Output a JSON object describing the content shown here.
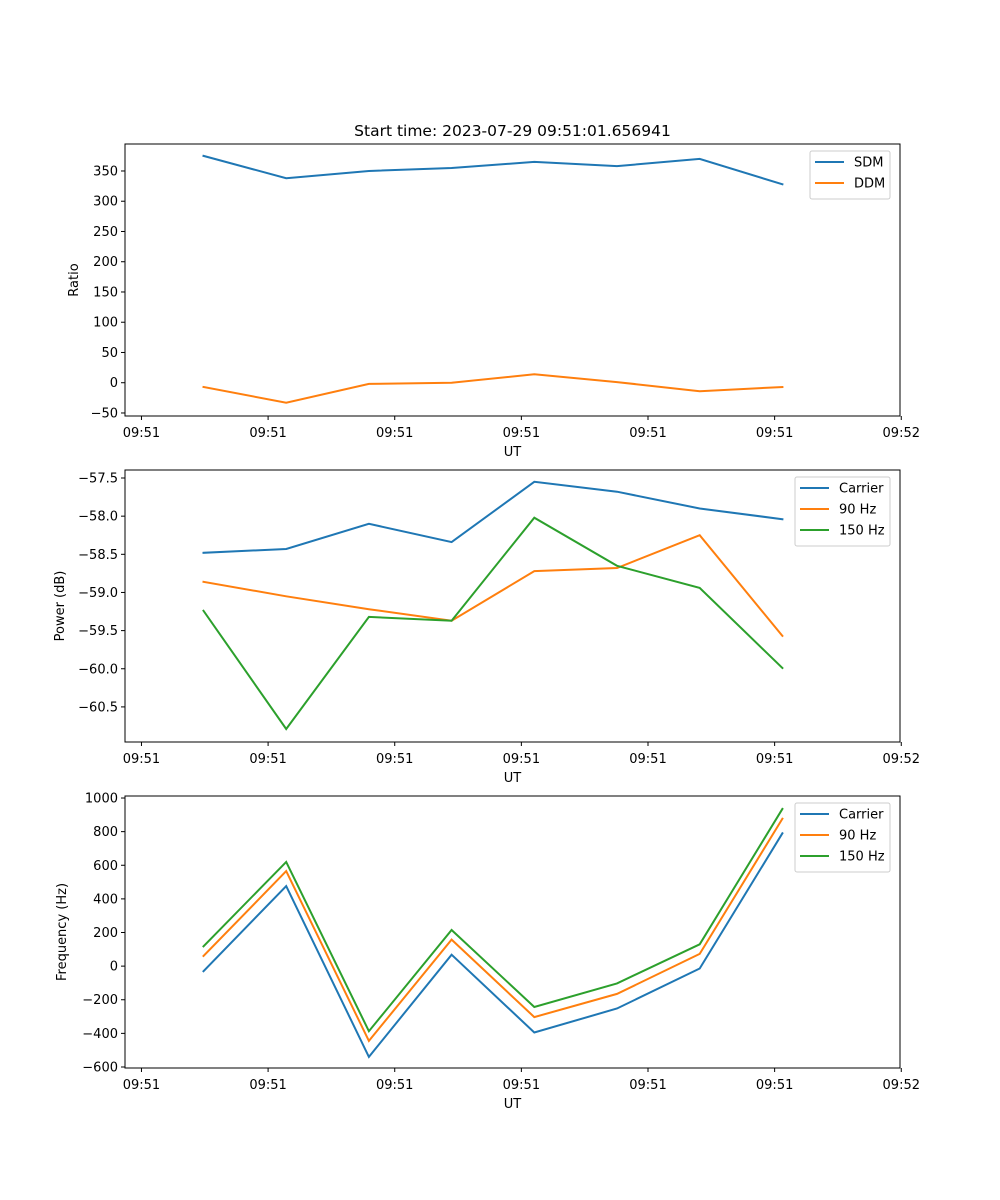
{
  "chart_data": [
    {
      "type": "line",
      "title": "Start time: 2023-07-29 09:51:01.656941",
      "xlabel": "UT",
      "ylabel": "Ratio",
      "x": [
        0.49,
        1.143,
        1.796,
        2.449,
        3.102,
        3.755,
        4.408,
        5.061
      ],
      "xlim": [
        -0.13,
        5.99
      ],
      "xticks": [
        0,
        1,
        2,
        3,
        4,
        5,
        6
      ],
      "xtick_labels": [
        "09:51",
        "09:51",
        "09:51",
        "09:51",
        "09:51",
        "09:51",
        "09:52"
      ],
      "ylim": [
        -55,
        394.6
      ],
      "yticks": [
        -50,
        0,
        50,
        100,
        150,
        200,
        250,
        300,
        350
      ],
      "ytick_labels": [
        "−50",
        "0",
        "50",
        "100",
        "150",
        "200",
        "250",
        "300",
        "350"
      ],
      "legend": "top-right",
      "grid": false,
      "series": [
        {
          "name": "SDM",
          "color": "#1f77b4",
          "values": [
            375,
            338,
            350,
            355,
            365,
            358,
            370,
            328
          ]
        },
        {
          "name": "DDM",
          "color": "#ff7f0e",
          "values": [
            -7,
            -33,
            -2,
            0,
            14,
            1,
            -14,
            -7
          ]
        }
      ]
    },
    {
      "type": "line",
      "title": "",
      "xlabel": "UT",
      "ylabel": "Power (dB)",
      "x": [
        0.49,
        1.143,
        1.796,
        2.449,
        3.102,
        3.755,
        4.408,
        5.061
      ],
      "xlim": [
        -0.13,
        5.99
      ],
      "xticks": [
        0,
        1,
        2,
        3,
        4,
        5,
        6
      ],
      "xtick_labels": [
        "09:51",
        "09:51",
        "09:51",
        "09:51",
        "09:51",
        "09:51",
        "09:52"
      ],
      "ylim": [
        -60.96,
        -57.395
      ],
      "yticks": [
        -60.5,
        -60.0,
        -59.5,
        -59.0,
        -58.5,
        -58.0,
        -57.5
      ],
      "ytick_labels": [
        "−60.5",
        "−60.0",
        "−59.5",
        "−59.0",
        "−58.5",
        "−58.0",
        "−57.5"
      ],
      "legend": "top-right",
      "grid": false,
      "series": [
        {
          "name": "Carrier",
          "color": "#1f77b4",
          "values": [
            -58.48,
            -58.43,
            -58.1,
            -58.34,
            -57.55,
            -57.68,
            -57.9,
            -58.04
          ]
        },
        {
          "name": "90 Hz",
          "color": "#ff7f0e",
          "values": [
            -58.86,
            -59.05,
            -59.22,
            -59.37,
            -58.72,
            -58.68,
            -58.25,
            -59.57
          ]
        },
        {
          "name": "150 Hz",
          "color": "#2ca02c",
          "values": [
            -59.24,
            -60.79,
            -59.32,
            -59.37,
            -58.02,
            -58.65,
            -58.94,
            -59.99
          ]
        }
      ]
    },
    {
      "type": "line",
      "title": "",
      "xlabel": "UT",
      "ylabel": "Frequency (Hz)",
      "x": [
        0.49,
        1.143,
        1.796,
        2.449,
        3.102,
        3.755,
        4.408,
        5.061
      ],
      "xlim": [
        -0.13,
        5.99
      ],
      "xticks": [
        0,
        1,
        2,
        3,
        4,
        5,
        6
      ],
      "xtick_labels": [
        "09:51",
        "09:51",
        "09:51",
        "09:51",
        "09:51",
        "09:51",
        "09:52"
      ],
      "ylim": [
        -606,
        1012
      ],
      "yticks": [
        -600,
        -400,
        -200,
        0,
        200,
        400,
        600,
        800,
        1000
      ],
      "ytick_labels": [
        "−600",
        "−400",
        "−200",
        "0",
        "200",
        "400",
        "600",
        "800",
        "1000"
      ],
      "legend": "top-right",
      "grid": false,
      "series": [
        {
          "name": "Carrier",
          "color": "#1f77b4",
          "values": [
            -30,
            476,
            -540,
            68,
            -395,
            -252,
            -14,
            790
          ]
        },
        {
          "name": "90 Hz",
          "color": "#ff7f0e",
          "values": [
            60,
            565,
            -445,
            158,
            -303,
            -165,
            73,
            877
          ]
        },
        {
          "name": "150 Hz",
          "color": "#2ca02c",
          "values": [
            118,
            620,
            -387,
            215,
            -243,
            -103,
            130,
            935
          ]
        }
      ]
    }
  ]
}
